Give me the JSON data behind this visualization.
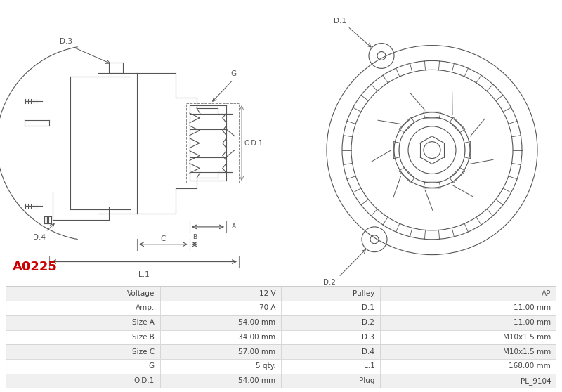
{
  "title": "A0225",
  "title_color": "#cc0000",
  "bg_color": "#ffffff",
  "table_bg_even": "#f0f0f0",
  "table_bg_odd": "#ffffff",
  "table_border": "#cccccc",
  "table_data": [
    [
      "Voltage",
      "12 V",
      "Pulley",
      "AP"
    ],
    [
      "Amp.",
      "70 A",
      "D.1",
      "11.00 mm"
    ],
    [
      "Size A",
      "54.00 mm",
      "D.2",
      "11.00 mm"
    ],
    [
      "Size B",
      "34.00 mm",
      "D.3",
      "M10x1.5 mm"
    ],
    [
      "Size C",
      "57.00 mm",
      "D.4",
      "M10x1.5 mm"
    ],
    [
      "G",
      "5 qty.",
      "L.1",
      "168.00 mm"
    ],
    [
      "O.D.1",
      "54.00 mm",
      "Plug",
      "PL_9104"
    ]
  ],
  "diagram_line_color": "#555555",
  "label_color": "#555555",
  "label_fontsize": 7.5,
  "diagram_linewidth": 0.8
}
